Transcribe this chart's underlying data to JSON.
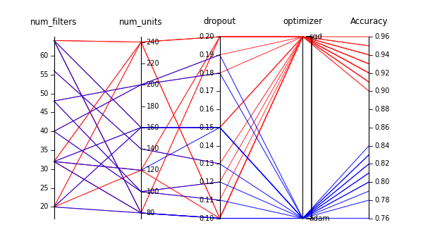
{
  "axes_labels": [
    "num_filters",
    "num_units",
    "dropout",
    "optimizer",
    "Accuracy"
  ],
  "num_filters_range": [
    17,
    65
  ],
  "num_filters_ticks": [
    20,
    25,
    30,
    35,
    40,
    45,
    50,
    55,
    60
  ],
  "num_units_range": [
    75,
    245
  ],
  "num_units_ticks": [
    80,
    100,
    120,
    140,
    160,
    180,
    200,
    220,
    240
  ],
  "dropout_range": [
    0.1,
    0.2
  ],
  "dropout_ticks": [
    0.1,
    0.11,
    0.12,
    0.13,
    0.14,
    0.15,
    0.16,
    0.17,
    0.18,
    0.19,
    0.2
  ],
  "accuracy_range": [
    0.76,
    0.96
  ],
  "accuracy_ticks": [
    0.76,
    0.78,
    0.8,
    0.82,
    0.84,
    0.86,
    0.88,
    0.9,
    0.92,
    0.94,
    0.96
  ],
  "records": [
    {
      "num_filters": 64,
      "num_units": 80,
      "dropout": 0.1,
      "optimizer": "adam",
      "accuracy": 0.76
    },
    {
      "num_filters": 64,
      "num_units": 80,
      "dropout": 0.1,
      "optimizer": "sgd",
      "accuracy": 0.92
    },
    {
      "num_filters": 64,
      "num_units": 80,
      "dropout": 0.2,
      "optimizer": "sgd",
      "accuracy": 0.94
    },
    {
      "num_filters": 64,
      "num_units": 240,
      "dropout": 0.1,
      "optimizer": "sgd",
      "accuracy": 0.93
    },
    {
      "num_filters": 64,
      "num_units": 240,
      "dropout": 0.2,
      "optimizer": "sgd",
      "accuracy": 0.95
    },
    {
      "num_filters": 32,
      "num_units": 80,
      "dropout": 0.1,
      "optimizer": "adam",
      "accuracy": 0.8
    },
    {
      "num_filters": 32,
      "num_units": 80,
      "dropout": 0.1,
      "optimizer": "sgd",
      "accuracy": 0.91
    },
    {
      "num_filters": 32,
      "num_units": 80,
      "dropout": 0.2,
      "optimizer": "sgd",
      "accuracy": 0.92
    },
    {
      "num_filters": 32,
      "num_units": 240,
      "dropout": 0.1,
      "optimizer": "sgd",
      "accuracy": 0.92
    },
    {
      "num_filters": 32,
      "num_units": 240,
      "dropout": 0.2,
      "optimizer": "sgd",
      "accuracy": 0.93
    },
    {
      "num_filters": 32,
      "num_units": 120,
      "dropout": 0.1,
      "optimizer": "sgd",
      "accuracy": 0.92
    },
    {
      "num_filters": 32,
      "num_units": 120,
      "dropout": 0.2,
      "optimizer": "sgd",
      "accuracy": 0.91
    },
    {
      "num_filters": 32,
      "num_units": 120,
      "dropout": 0.15,
      "optimizer": "adam",
      "accuracy": 0.83
    },
    {
      "num_filters": 20,
      "num_units": 80,
      "dropout": 0.1,
      "optimizer": "adam",
      "accuracy": 0.78
    },
    {
      "num_filters": 20,
      "num_units": 80,
      "dropout": 0.1,
      "optimizer": "sgd",
      "accuracy": 0.9
    },
    {
      "num_filters": 20,
      "num_units": 240,
      "dropout": 0.1,
      "optimizer": "sgd",
      "accuracy": 0.91
    },
    {
      "num_filters": 20,
      "num_units": 240,
      "dropout": 0.2,
      "optimizer": "sgd",
      "accuracy": 0.92
    },
    {
      "num_filters": 20,
      "num_units": 120,
      "dropout": 0.1,
      "optimizer": "sgd",
      "accuracy": 0.9
    },
    {
      "num_filters": 20,
      "num_units": 120,
      "dropout": 0.2,
      "optimizer": "sgd",
      "accuracy": 0.91
    },
    {
      "num_filters": 64,
      "num_units": 160,
      "dropout": 0.15,
      "optimizer": "sgd",
      "accuracy": 0.96
    },
    {
      "num_filters": 64,
      "num_units": 160,
      "dropout": 0.15,
      "optimizer": "adam",
      "accuracy": 0.84
    },
    {
      "num_filters": 32,
      "num_units": 160,
      "dropout": 0.15,
      "optimizer": "sgd",
      "accuracy": 0.94
    },
    {
      "num_filters": 32,
      "num_units": 160,
      "dropout": 0.15,
      "optimizer": "adam",
      "accuracy": 0.82
    },
    {
      "num_filters": 20,
      "num_units": 160,
      "dropout": 0.15,
      "optimizer": "sgd",
      "accuracy": 0.91
    },
    {
      "num_filters": 20,
      "num_units": 160,
      "dropout": 0.15,
      "optimizer": "adam",
      "accuracy": 0.79
    },
    {
      "num_filters": 48,
      "num_units": 100,
      "dropout": 0.12,
      "optimizer": "sgd",
      "accuracy": 0.93
    },
    {
      "num_filters": 48,
      "num_units": 200,
      "dropout": 0.18,
      "optimizer": "sgd",
      "accuracy": 0.94
    },
    {
      "num_filters": 48,
      "num_units": 100,
      "dropout": 0.12,
      "optimizer": "adam",
      "accuracy": 0.81
    },
    {
      "num_filters": 48,
      "num_units": 200,
      "dropout": 0.18,
      "optimizer": "adam",
      "accuracy": 0.82
    },
    {
      "num_filters": 56,
      "num_units": 140,
      "dropout": 0.13,
      "optimizer": "sgd",
      "accuracy": 0.95
    },
    {
      "num_filters": 56,
      "num_units": 140,
      "dropout": 0.13,
      "optimizer": "adam",
      "accuracy": 0.83
    },
    {
      "num_filters": 40,
      "num_units": 100,
      "dropout": 0.11,
      "optimizer": "sgd",
      "accuracy": 0.92
    },
    {
      "num_filters": 40,
      "num_units": 200,
      "dropout": 0.19,
      "optimizer": "sgd",
      "accuracy": 0.93
    },
    {
      "num_filters": 40,
      "num_units": 100,
      "dropout": 0.11,
      "optimizer": "adam",
      "accuracy": 0.8
    },
    {
      "num_filters": 40,
      "num_units": 200,
      "dropout": 0.19,
      "optimizer": "adam",
      "accuracy": 0.81
    }
  ],
  "background_color": "#ffffff"
}
